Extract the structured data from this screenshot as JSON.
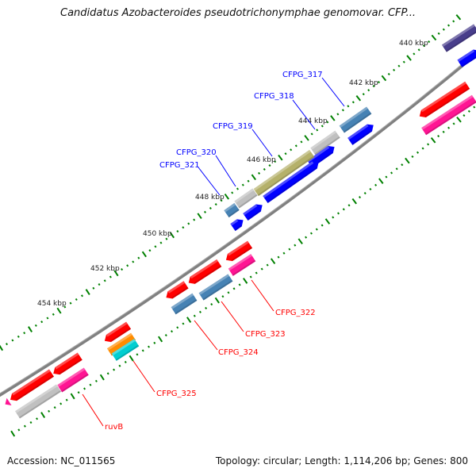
{
  "title": "Candidatus Azobacteroides pseudotrichonymphae genomovar. CFP...",
  "footer": {
    "accession": "Accession: NC_011565",
    "summary": "Topology: circular; Length: 1,114,206 bp; Genes: 800"
  },
  "ticks": [
    "440 kbp",
    "442 kbp",
    "444 kbp",
    "446 kbp",
    "448 kbp",
    "450 kbp",
    "452 kbp",
    "454 kbp"
  ],
  "gene_labels": {
    "forward": [
      "CFPG_317",
      "CFPG_318",
      "CFPG_319",
      "CFPG_320",
      "CFPG_321"
    ],
    "reverse": [
      "CFPG_322",
      "CFPG_323",
      "CFPG_324",
      "CFPG_325",
      "ruvB"
    ]
  },
  "colors": {
    "backbone": "#808080",
    "tick": "#008000",
    "forward_label": "#0000ff",
    "reverse_label": "#ff0000",
    "cds": "#0000ff",
    "cds_rev": "#ff0000",
    "steelblue": "#4682b4",
    "gray": "#c0c0c0",
    "olive": "#b5b16a",
    "pink": "#ff1493",
    "orange": "#ff8c00",
    "cyan": "#00ced1",
    "purple": "#483d8b"
  }
}
